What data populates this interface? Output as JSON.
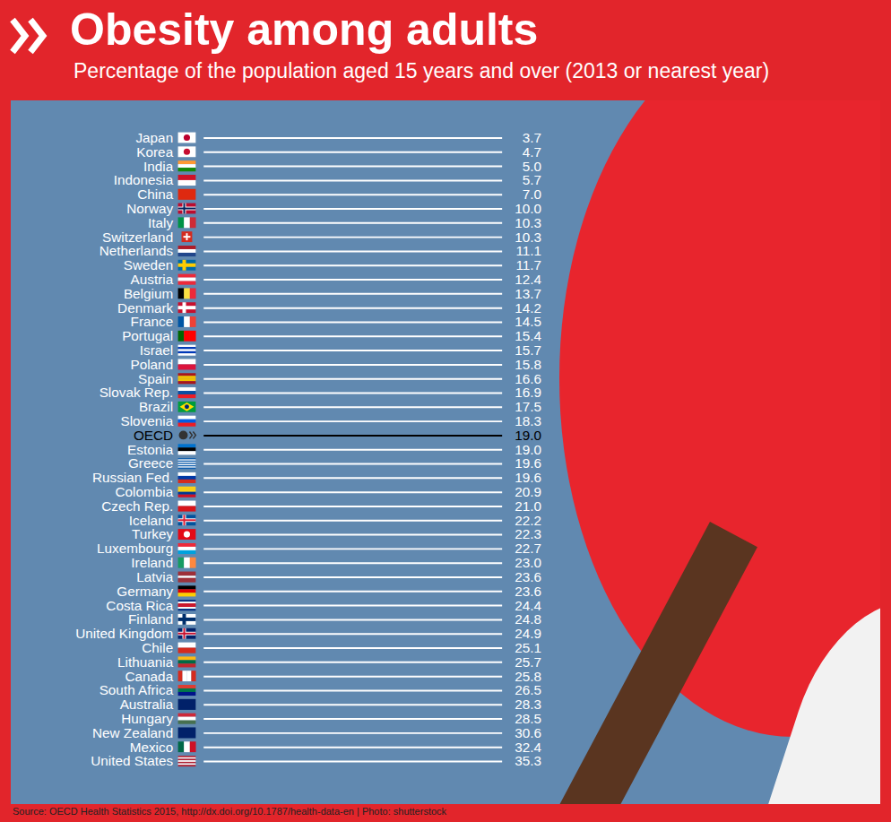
{
  "chart_data": {
    "type": "list",
    "title": "Obesity among adults",
    "subtitle": "Percentage of the population aged 15 years and over (2013 or nearest year)",
    "caption": "Source: OECD Health Statistics 2015, http://dx.doi.org/10.1787/health-data-en | Photo: shutterstock",
    "orientation": "horizontal",
    "data_labels": true,
    "tick_labels": "y",
    "categories": [
      "Japan",
      "Korea",
      "India",
      "Indonesia",
      "China",
      "Norway",
      "Italy",
      "Switzerland",
      "Netherlands",
      "Sweden",
      "Austria",
      "Belgium",
      "Denmark",
      "France",
      "Portugal",
      "Israel",
      "Poland",
      "Spain",
      "Slovak Rep.",
      "Brazil",
      "Slovenia",
      "OECD",
      "Estonia",
      "Greece",
      "Russian Fed.",
      "Colombia",
      "Czech Rep.",
      "Iceland",
      "Turkey",
      "Luxembourg",
      "Ireland",
      "Latvia",
      "Germany",
      "Costa Rica",
      "Finland",
      "United Kingdom",
      "Chile",
      "Lithuania",
      "Canada",
      "South Africa",
      "Australia",
      "Hungary",
      "New Zealand",
      "Mexico",
      "United States"
    ],
    "values": [
      3.7,
      4.7,
      5.0,
      5.7,
      7.0,
      10.0,
      10.3,
      10.3,
      11.1,
      11.7,
      12.4,
      13.7,
      14.2,
      14.5,
      15.4,
      15.7,
      15.8,
      16.6,
      16.9,
      17.5,
      18.3,
      19.0,
      19.0,
      19.6,
      19.6,
      20.9,
      21.0,
      22.2,
      22.3,
      22.7,
      23.0,
      23.6,
      23.6,
      24.4,
      24.8,
      24.9,
      25.1,
      25.7,
      25.8,
      26.5,
      28.3,
      28.5,
      30.6,
      32.4,
      35.3
    ],
    "value_labels": [
      "3.7",
      "4.7",
      "5.0",
      "5.7",
      "7.0",
      "10.0",
      "10.3",
      "10.3",
      "11.1",
      "11.7",
      "12.4",
      "13.7",
      "14.2",
      "14.5",
      "15.4",
      "15.7",
      "15.8",
      "16.6",
      "16.9",
      "17.5",
      "18.3",
      "19.0",
      "19.0",
      "19.6",
      "19.6",
      "20.9",
      "21.0",
      "22.2",
      "22.3",
      "22.7",
      "23.0",
      "23.6",
      "23.6",
      "24.4",
      "24.8",
      "24.9",
      "25.1",
      "25.7",
      "25.8",
      "26.5",
      "28.3",
      "28.5",
      "30.6",
      "32.4",
      "35.3"
    ],
    "colors": [
      "#ffffff",
      "#ffffff",
      "#ffffff",
      "#ffffff",
      "#ffffff",
      "#ffffff",
      "#ffffff",
      "#ffffff",
      "#ffffff",
      "#ffffff",
      "#ffffff",
      "#ffffff",
      "#ffffff",
      "#ffffff",
      "#ffffff",
      "#ffffff",
      "#ffffff",
      "#ffffff",
      "#ffffff",
      "#ffffff",
      "#ffffff",
      "#000000",
      "#ffffff",
      "#ffffff",
      "#ffffff",
      "#ffffff",
      "#ffffff",
      "#ffffff",
      "#ffffff",
      "#ffffff",
      "#ffffff",
      "#ffffff",
      "#ffffff",
      "#ffffff",
      "#ffffff",
      "#ffffff",
      "#ffffff",
      "#ffffff",
      "#ffffff",
      "#ffffff",
      "#ffffff",
      "#ffffff",
      "#ffffff",
      "#ffffff",
      "#ffffff"
    ]
  }
}
